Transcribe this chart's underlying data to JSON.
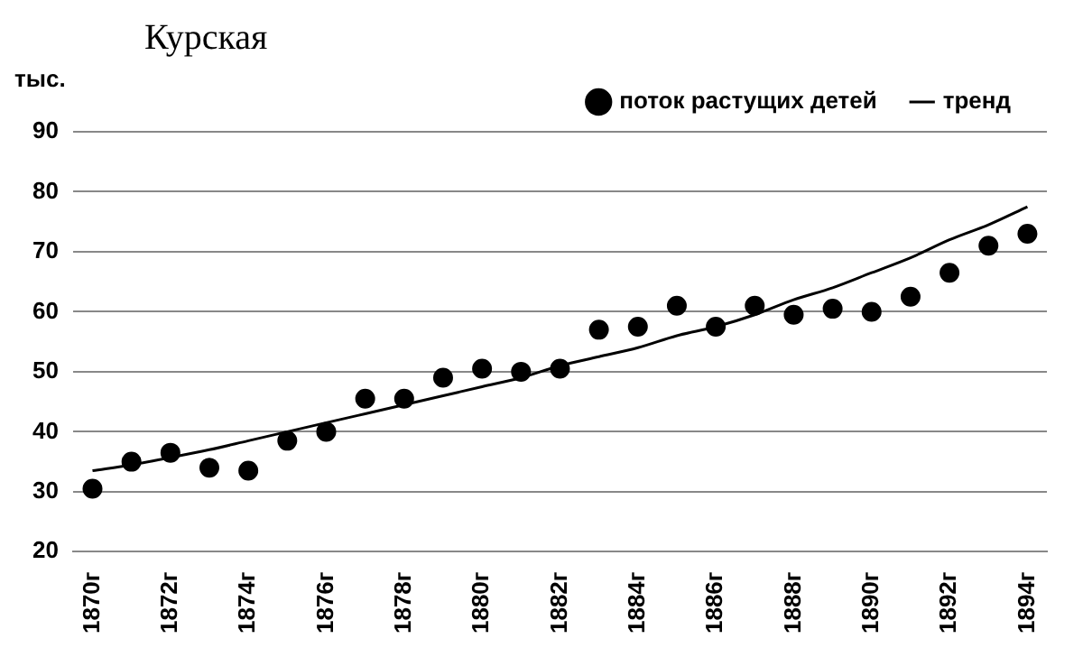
{
  "chart_data": {
    "type": "scatter",
    "title": "Курская",
    "ylabel": "тыс.",
    "categories": [
      "1870г",
      null,
      "1872г",
      null,
      "1874г",
      null,
      "1876г",
      null,
      "1878г",
      null,
      "1880г",
      null,
      "1882г",
      null,
      "1884г",
      null,
      "1886г",
      null,
      "1888г",
      null,
      "1890г",
      null,
      "1892г",
      null,
      "1894г"
    ],
    "series": [
      {
        "name": "поток растущих детей",
        "color": "#000000",
        "marker": "circle",
        "values": [
          30.5,
          35,
          36.5,
          34,
          33.5,
          38.5,
          40,
          45.5,
          45.5,
          49,
          50.5,
          50,
          50.5,
          57,
          57.5,
          61,
          57.5,
          61,
          59.5,
          60.5,
          60,
          62.5,
          66.5,
          71,
          73
        ]
      },
      {
        "name": "тренд",
        "type": "line",
        "color": "#000000",
        "marker": "none",
        "line_style": "solid",
        "values": [
          33.5,
          34.5,
          35.7,
          37,
          38.5,
          40,
          41.5,
          43,
          44.5,
          46,
          47.5,
          49,
          51,
          52.5,
          54,
          56,
          57.5,
          59.5,
          62,
          64,
          66.5,
          69,
          72,
          74.5,
          77.5
        ]
      }
    ],
    "ylim": [
      20,
      90
    ],
    "yticks": [
      20,
      30,
      40,
      50,
      60,
      70,
      80,
      90
    ],
    "grid": "y",
    "legend": "top right"
  }
}
